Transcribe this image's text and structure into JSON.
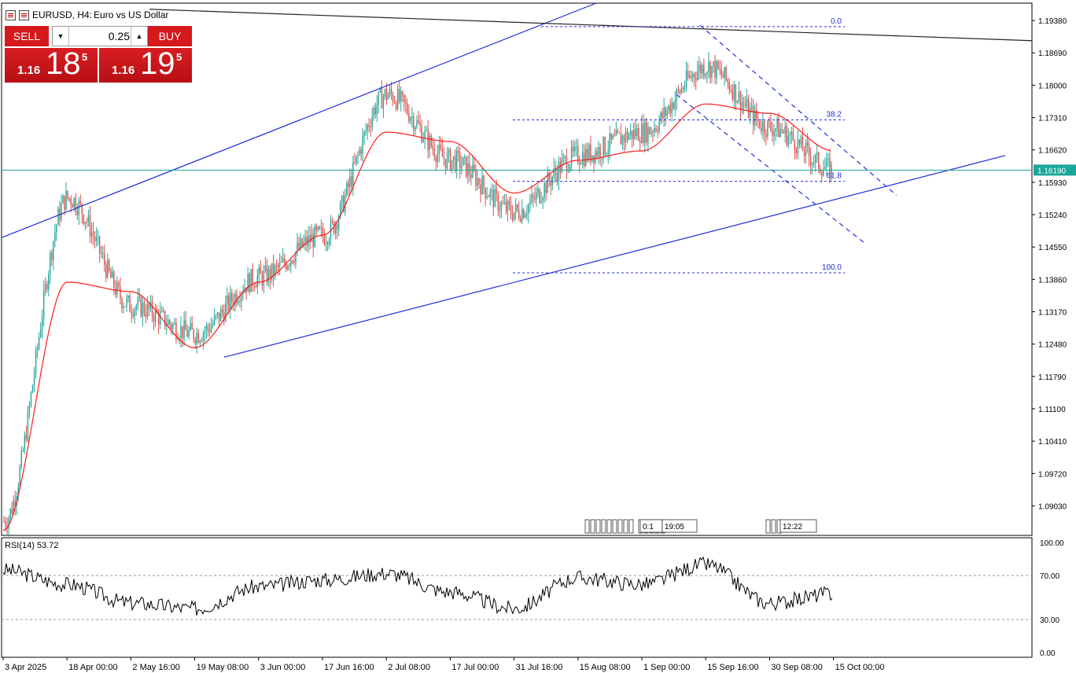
{
  "header": {
    "symbol": "EURUSD, H4:",
    "description": "Euro vs US Dollar"
  },
  "trade_panel": {
    "sell_label": "SELL",
    "buy_label": "BUY",
    "lot_value": "0.25",
    "sell_price_small": "1.16",
    "sell_price_big": "18",
    "sell_price_sup": "5",
    "buy_price_small": "1.16",
    "buy_price_big": "19",
    "buy_price_sup": "5"
  },
  "colors": {
    "bull": "#26a69a",
    "bear": "#d9534f",
    "ma": "#ff1a1a",
    "trendline": "#1f2fd8",
    "fib": "#1f2fd8",
    "current_price_line": "#1aa69a",
    "rsi": "#000000"
  },
  "chart_data": [
    {
      "type": "candlestick",
      "symbol": "EURUSD",
      "timeframe": "H4",
      "ylim": [
        1.084,
        1.1975
      ],
      "y_ticks": [
        "1.19380",
        "1.18690",
        "1.18000",
        "1.17310",
        "1.16620",
        "1.15930",
        "1.15240",
        "1.14550",
        "1.13860",
        "1.13170",
        "1.12480",
        "1.11790",
        "1.11100",
        "1.10410",
        "1.09720",
        "1.09030"
      ],
      "x_ticks": [
        "3 Apr 2025",
        "18 Apr 00:00",
        "2 May 16:00",
        "19 May 08:00",
        "3 Jun 00:00",
        "17 Jun 16:00",
        "2 Jul 08:00",
        "17 Jul 00:00",
        "31 Jul 16:00",
        "15 Aug 08:00",
        "1 Sep 00:00",
        "15 Sep 16:00",
        "30 Sep 08:00",
        "15 Oct 00:00"
      ],
      "current_price": "1.16190",
      "series": [
        {
          "name": "close",
          "x_index": [
            0,
            1,
            2,
            3,
            4,
            5,
            6,
            7,
            8,
            9,
            10,
            11,
            12,
            13
          ],
          "values": [
            1.087,
            1.156,
            1.133,
            1.127,
            1.139,
            1.148,
            1.178,
            1.164,
            1.153,
            1.165,
            1.17,
            1.184,
            1.171,
            1.1619
          ]
        },
        {
          "name": "moving average",
          "x_index": [
            0,
            1,
            2,
            3,
            4,
            5,
            6,
            7,
            8,
            9,
            10,
            11,
            12,
            13
          ],
          "values": [
            1.085,
            1.138,
            1.136,
            1.124,
            1.138,
            1.148,
            1.17,
            1.168,
            1.157,
            1.164,
            1.166,
            1.176,
            1.174,
            1.166
          ]
        }
      ],
      "fibonacci_levels": [
        {
          "label": "0.0",
          "value": 1.1925
        },
        {
          "label": "38.2",
          "value": 1.1726
        },
        {
          "label": "61.8",
          "value": 1.1595
        },
        {
          "label": "100.0",
          "value": 1.14
        }
      ],
      "event_markers": [
        "0:1",
        "19:05",
        "12:22"
      ]
    },
    {
      "type": "line",
      "title": "RSI(14) 53.72",
      "ylim": [
        0,
        100
      ],
      "y_ticks": [
        "100.00",
        "70.00",
        "30.00",
        "0.00"
      ],
      "levels": [
        70,
        30
      ],
      "x_index": [
        0,
        1,
        2,
        3,
        4,
        5,
        6,
        7,
        8,
        9,
        10,
        11,
        12,
        13
      ],
      "values": [
        75,
        62,
        45,
        40,
        60,
        66,
        72,
        55,
        40,
        68,
        62,
        80,
        45,
        53.72
      ]
    }
  ]
}
